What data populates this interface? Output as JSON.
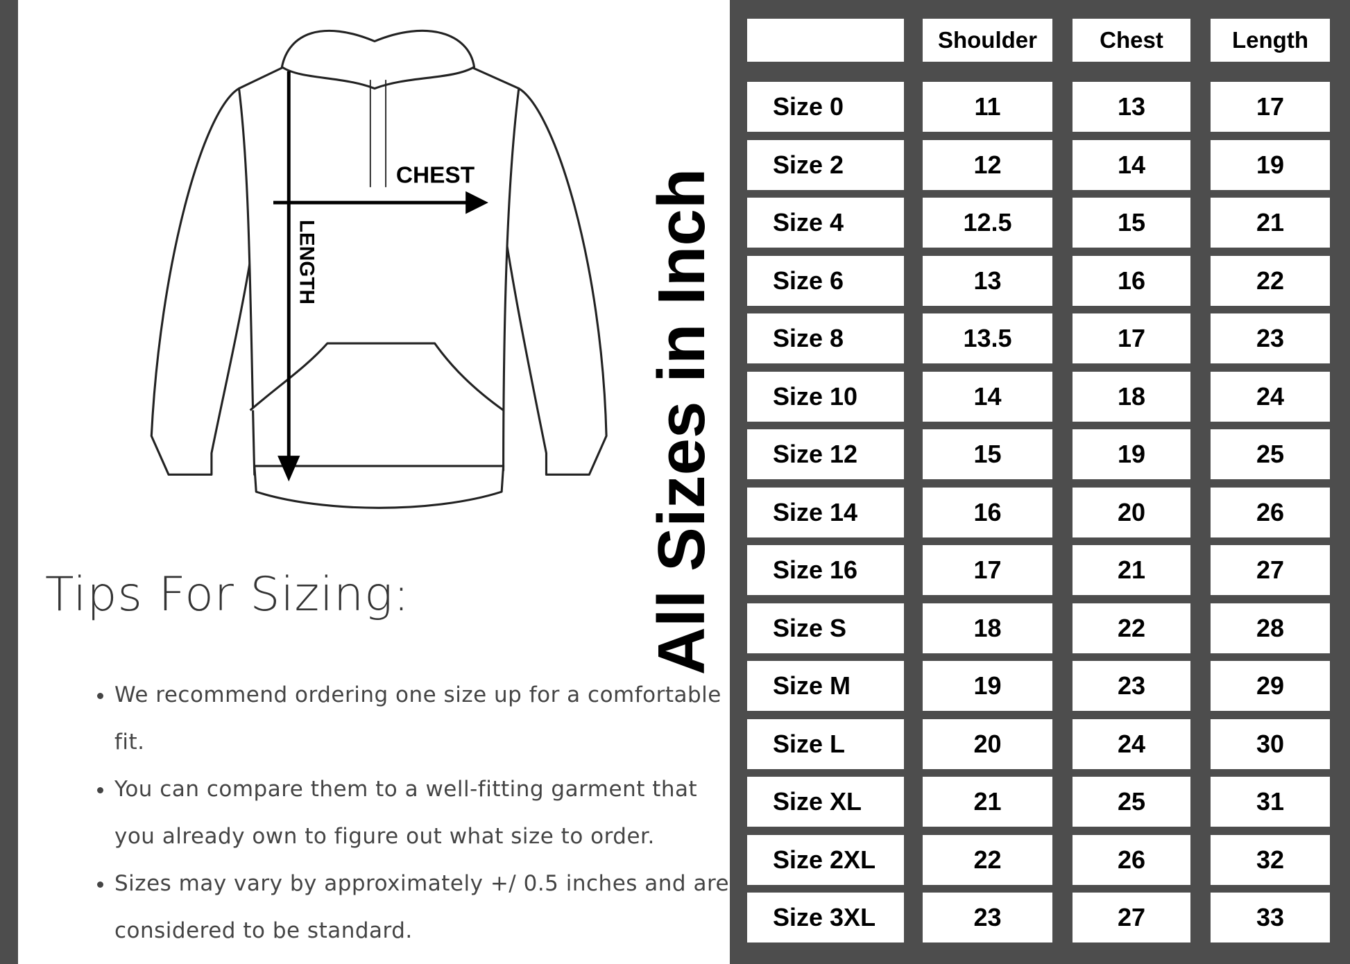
{
  "diagram": {
    "chest_label": "CHEST",
    "length_label": "LENGTH"
  },
  "tips": {
    "title": "Tips For Sizing:",
    "items": [
      "We recommend ordering one size up for a comfortable fit.",
      "You can compare them to a well-fitting garment that you already own to figure out what size to order.",
      "Sizes may vary by approximately +/ 0.5 inches and are considered to be standard."
    ]
  },
  "vertical_title": "All Sizes in Inch",
  "size_table": {
    "headers": [
      "",
      "Shoulder",
      "Chest",
      "Length"
    ],
    "rows": [
      [
        "Size 0",
        "11",
        "13",
        "17"
      ],
      [
        "Size 2",
        "12",
        "14",
        "19"
      ],
      [
        "Size 4",
        "12.5",
        "15",
        "21"
      ],
      [
        "Size 6",
        "13",
        "16",
        "22"
      ],
      [
        "Size 8",
        "13.5",
        "17",
        "23"
      ],
      [
        "Size 10",
        "14",
        "18",
        "24"
      ],
      [
        "Size 12",
        "15",
        "19",
        "25"
      ],
      [
        "Size 14",
        "16",
        "20",
        "26"
      ],
      [
        "Size 16",
        "17",
        "21",
        "27"
      ],
      [
        "Size S",
        "18",
        "22",
        "28"
      ],
      [
        "Size M",
        "19",
        "23",
        "29"
      ],
      [
        "Size L",
        "20",
        "24",
        "30"
      ],
      [
        "Size XL",
        "21",
        "25",
        "31"
      ],
      [
        "Size 2XL",
        "22",
        "26",
        "32"
      ],
      [
        "Size 3XL",
        "23",
        "27",
        "33"
      ]
    ]
  },
  "colors": {
    "grid": "#4d4d4d",
    "text": "#000000"
  }
}
